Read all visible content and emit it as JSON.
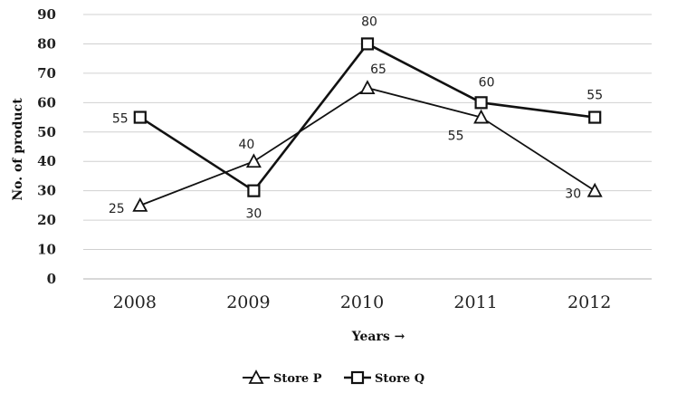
{
  "chart_data": {
    "type": "line",
    "categories": [
      "2008",
      "2009",
      "2010",
      "2011",
      "2012"
    ],
    "series": [
      {
        "name": "Store P",
        "values": [
          25,
          40,
          65,
          55,
          30
        ],
        "marker": "triangle",
        "color": "#111111"
      },
      {
        "name": "Store Q",
        "values": [
          55,
          30,
          80,
          60,
          55
        ],
        "marker": "square",
        "color": "#111111"
      }
    ],
    "title": "",
    "xlabel": "Years →",
    "ylabel": "No. of product",
    "ylim": [
      0,
      90
    ],
    "yticks": [
      "0",
      "10",
      "20",
      "30",
      "40",
      "50",
      "60",
      "70",
      "80",
      "90"
    ],
    "grid": true,
    "legend_position": "bottom",
    "gridline_color": "#d0d0d0"
  }
}
